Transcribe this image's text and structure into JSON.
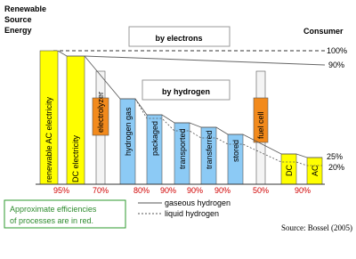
{
  "header": {
    "source_lines": [
      "Renewable",
      "Source",
      "Energy"
    ],
    "consumer": "Consumer"
  },
  "routes": {
    "electrons": "by electrons",
    "hydrogen": "by hydrogen"
  },
  "levels": {
    "full": "100%",
    "electron": "90%",
    "gas": "25%",
    "liquid": "20%"
  },
  "stages": [
    "renewable AC electricity",
    "DC electricity",
    "electrolyzer",
    "hydrogen gas",
    "packaged",
    "transported",
    "transferred",
    "stored",
    "fuel cell",
    "DC",
    "AC"
  ],
  "efficiencies": [
    "95%",
    "70%",
    "80%",
    "90%",
    "90%",
    "90%",
    "50%",
    "90%"
  ],
  "legend": {
    "gaseous": "gaseous hydrogen",
    "liquid": "liquid hydrogen"
  },
  "note": [
    "Approximate efficiencies",
    "of processes are in red."
  ],
  "source": "Source: Bossel (2005)"
}
